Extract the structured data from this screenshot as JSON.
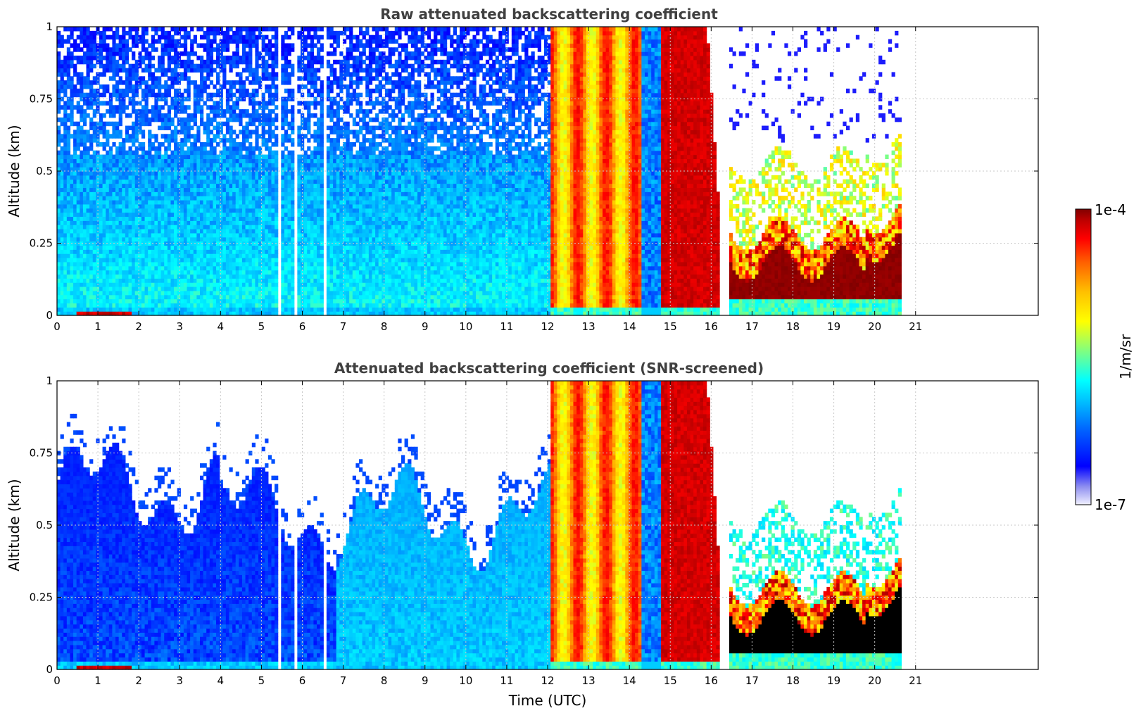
{
  "chart_data": [
    {
      "type": "heatmap",
      "title": "Raw attenuated backscattering coefficient",
      "ylabel": "Altitude (km)",
      "xlabel": "",
      "xlim": [
        0,
        24
      ],
      "ylim": [
        0,
        1
      ],
      "x_ticks": [
        "0",
        "1",
        "2",
        "3",
        "4",
        "5",
        "6",
        "7",
        "8",
        "9",
        "10",
        "11",
        "12",
        "13",
        "14",
        "15",
        "16",
        "17",
        "18",
        "19",
        "20",
        "21"
      ],
      "y_ticks": [
        "0",
        "0.25",
        "0.5",
        "0.75",
        "1"
      ],
      "grid": true,
      "data_end_hour": 20.65,
      "regimes": [
        {
          "from": 0,
          "to": 12.1,
          "description": "low blue backscatter, noisy above 0.5 km"
        },
        {
          "from": 12.1,
          "to": 14.3,
          "description": "orange/yellow full-column precipitation"
        },
        {
          "from": 14.3,
          "to": 14.8,
          "description": "blue"
        },
        {
          "from": 14.8,
          "to": 16.2,
          "description": "red full-column precipitation"
        },
        {
          "from": 16.4,
          "to": 20.65,
          "description": "dark red boundary layer below ~0.3 km"
        }
      ]
    },
    {
      "type": "heatmap",
      "title": "Attenuated backscattering coefficient (SNR-screened)",
      "ylabel": "Altitude (km)",
      "xlabel": "Time (UTC)",
      "xlim": [
        0,
        24
      ],
      "ylim": [
        0,
        1
      ],
      "x_ticks": [
        "0",
        "1",
        "2",
        "3",
        "4",
        "5",
        "6",
        "7",
        "8",
        "9",
        "10",
        "11",
        "12",
        "13",
        "14",
        "15",
        "16",
        "17",
        "18",
        "19",
        "20",
        "21"
      ],
      "y_ticks": [
        "0",
        "0.25",
        "0.5",
        "0.75",
        "1"
      ],
      "grid": true,
      "data_end_hour": 20.65,
      "regimes": [
        {
          "from": 0,
          "to": 12.1,
          "description": "blue backscatter below ~0.6 km, screened above"
        },
        {
          "from": 12.1,
          "to": 14.3,
          "description": "orange/yellow full-column precipitation"
        },
        {
          "from": 14.8,
          "to": 16.2,
          "description": "red full-column precipitation"
        },
        {
          "from": 16.4,
          "to": 20.65,
          "description": "saturated black boundary layer below ~0.3 km"
        }
      ]
    }
  ],
  "colorbar": {
    "min_label": "1e-7",
    "max_label": "1e-4",
    "label": "1/m/sr",
    "colormap": [
      "#f0f0ff",
      "#9090f0",
      "#0000ff",
      "#0060ff",
      "#00c0ff",
      "#00ffff",
      "#80ff80",
      "#ffff00",
      "#ffc000",
      "#ff6000",
      "#ff0000",
      "#c00000",
      "#800000"
    ]
  }
}
